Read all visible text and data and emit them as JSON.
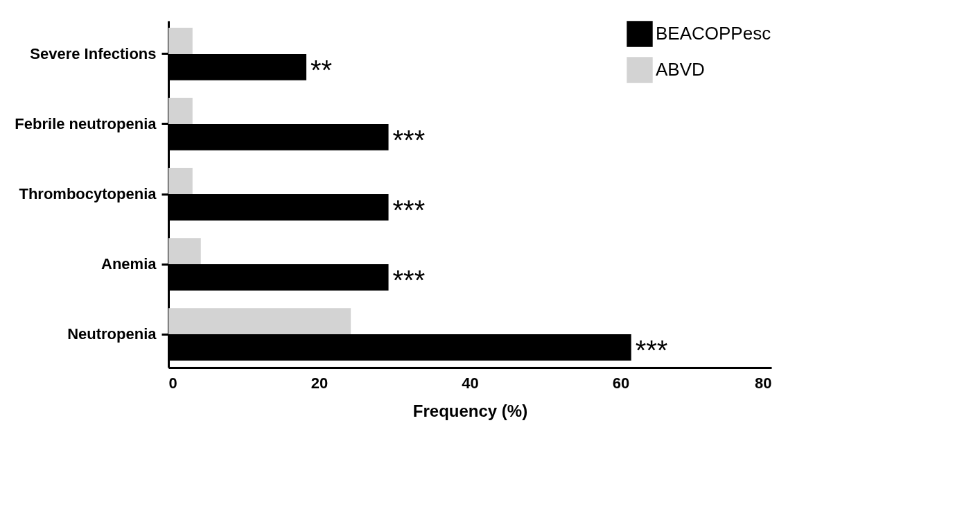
{
  "chart_data": {
    "type": "bar",
    "orientation": "horizontal",
    "xlabel": "Frequency (%)",
    "categories": [
      "Severe Infections",
      "Febrile neutropenia",
      "Thrombocytopenia",
      "Anemia",
      "Neutropenia"
    ],
    "series": [
      {
        "name": "ABVD",
        "color": "#d3d3d3",
        "values": [
          3.2,
          3.2,
          3.2,
          4.3,
          24.2
        ]
      },
      {
        "name": "BEACOPPesc",
        "color": "#000000",
        "values": [
          18.3,
          29.2,
          29.2,
          29.2,
          61.4
        ]
      }
    ],
    "xlim": [
      0,
      80
    ],
    "xticks": [
      0,
      20,
      40,
      60,
      80
    ],
    "grid": false,
    "legend": "top right",
    "annotations": [
      {
        "text": "**",
        "x": 18.3,
        "y": "Severe Infections"
      },
      {
        "text": "***",
        "x": 29.2,
        "y": "Febrile neutropenia"
      },
      {
        "text": "***",
        "x": 29.2,
        "y": "Thrombocytopenia"
      },
      {
        "text": "***",
        "x": 29.2,
        "y": "Anemia"
      },
      {
        "text": "***",
        "x": 61.4,
        "y": "Neutropenia"
      }
    ]
  }
}
